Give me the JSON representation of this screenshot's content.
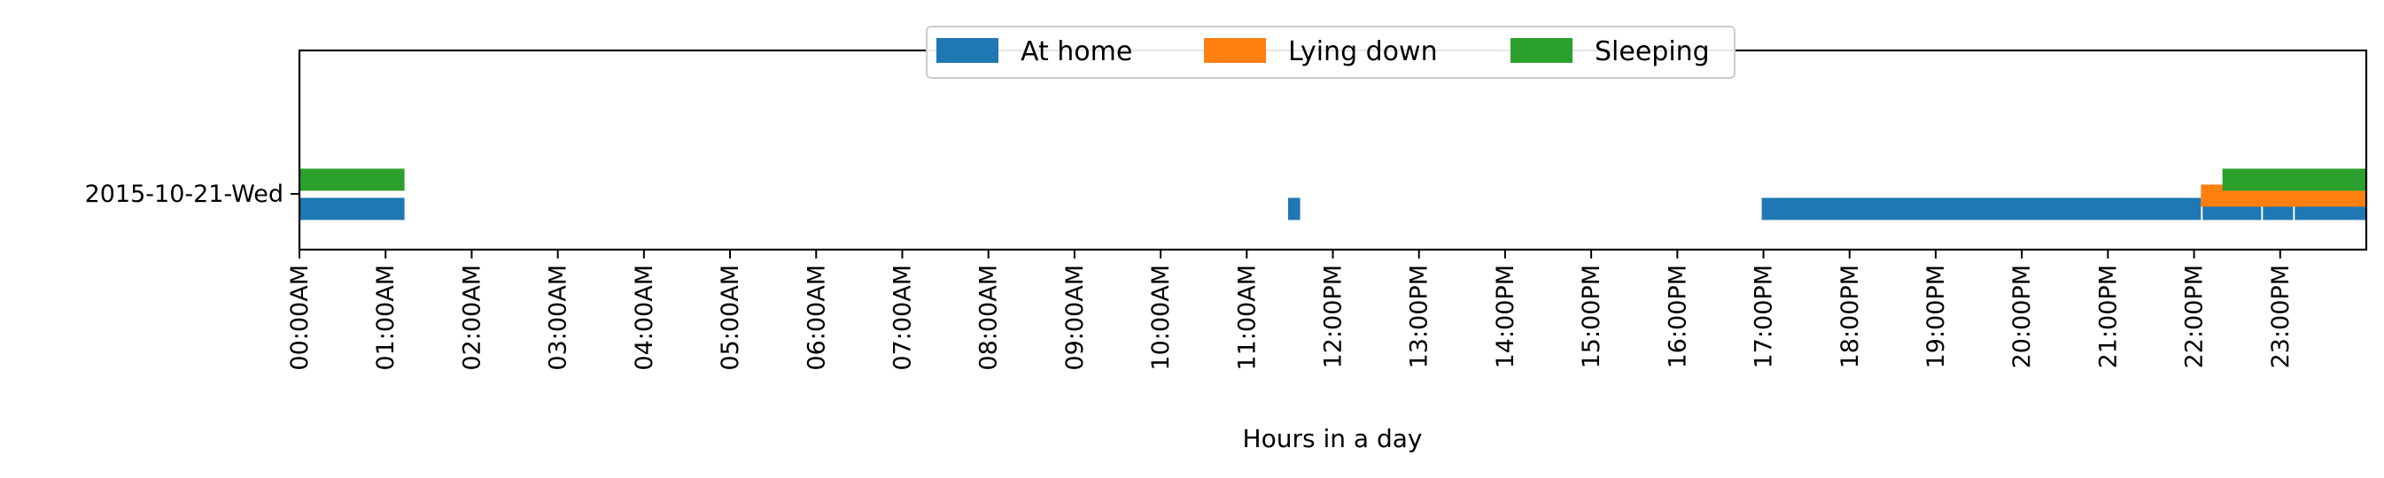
{
  "chart_data": {
    "type": "timeline",
    "xlabel": "Hours in a day",
    "x_tick_labels": [
      "00:00AM",
      "01:00AM",
      "02:00AM",
      "03:00AM",
      "04:00AM",
      "05:00AM",
      "06:00AM",
      "07:00AM",
      "08:00AM",
      "09:00AM",
      "10:00AM",
      "11:00AM",
      "12:00PM",
      "13:00PM",
      "14:00PM",
      "15:00PM",
      "16:00PM",
      "17:00PM",
      "18:00PM",
      "19:00PM",
      "20:00PM",
      "21:00PM",
      "22:00PM",
      "23:00PM"
    ],
    "xlim": [
      0,
      24
    ],
    "categories": [
      "2015-10-21-Wed"
    ],
    "legend_position": "top-center",
    "grid": false,
    "series": [
      {
        "name": "At home",
        "color": "#1f77b4",
        "intervals": [
          [
            0.0,
            1.22
          ],
          [
            11.48,
            11.62
          ],
          [
            16.98,
            22.08
          ],
          [
            22.1,
            22.78
          ],
          [
            22.8,
            23.15
          ],
          [
            23.17,
            24.0
          ]
        ]
      },
      {
        "name": "Lying down",
        "color": "#ff7f0e",
        "intervals": [
          [
            22.08,
            24.0
          ]
        ]
      },
      {
        "name": "Sleeping",
        "color": "#2ca02c",
        "intervals": [
          [
            0.0,
            1.22
          ],
          [
            22.33,
            24.0
          ]
        ]
      }
    ]
  }
}
